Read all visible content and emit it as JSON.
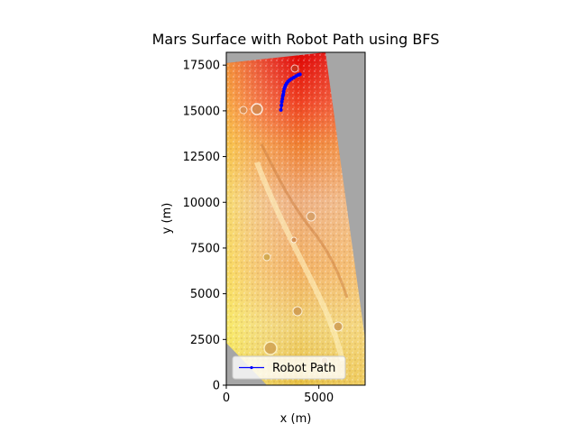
{
  "chart_data": {
    "type": "line",
    "title": "Mars Surface with Robot Path using BFS",
    "xlabel": "x (m)",
    "ylabel": "y (m)",
    "xlim": [
      0,
      7500
    ],
    "ylim": [
      0,
      18200
    ],
    "xticks": [
      0,
      5000
    ],
    "yticks": [
      0,
      2500,
      5000,
      7500,
      10000,
      12500,
      15000,
      17500
    ],
    "grid": false,
    "legend": {
      "position": "lower-center"
    },
    "background_image": {
      "description": "Mars terrain elevation heatmap (yellow to red colormap, hillshaded), tilted swath on grey no-data background",
      "nodata_color": "#a6a6a6"
    },
    "series": [
      {
        "name": "Robot Path",
        "color": "#0000ff",
        "marker": "dot",
        "x": [
          2950,
          2980,
          3000,
          3030,
          3050,
          3080,
          3100,
          3130,
          3170,
          3200,
          3260,
          3330,
          3420,
          3520,
          3640,
          3760,
          3880,
          3980
        ],
        "y": [
          15050,
          15300,
          15500,
          15650,
          15800,
          15900,
          16050,
          16200,
          16300,
          16400,
          16500,
          16600,
          16680,
          16750,
          16820,
          16900,
          16960,
          17000
        ]
      }
    ]
  }
}
